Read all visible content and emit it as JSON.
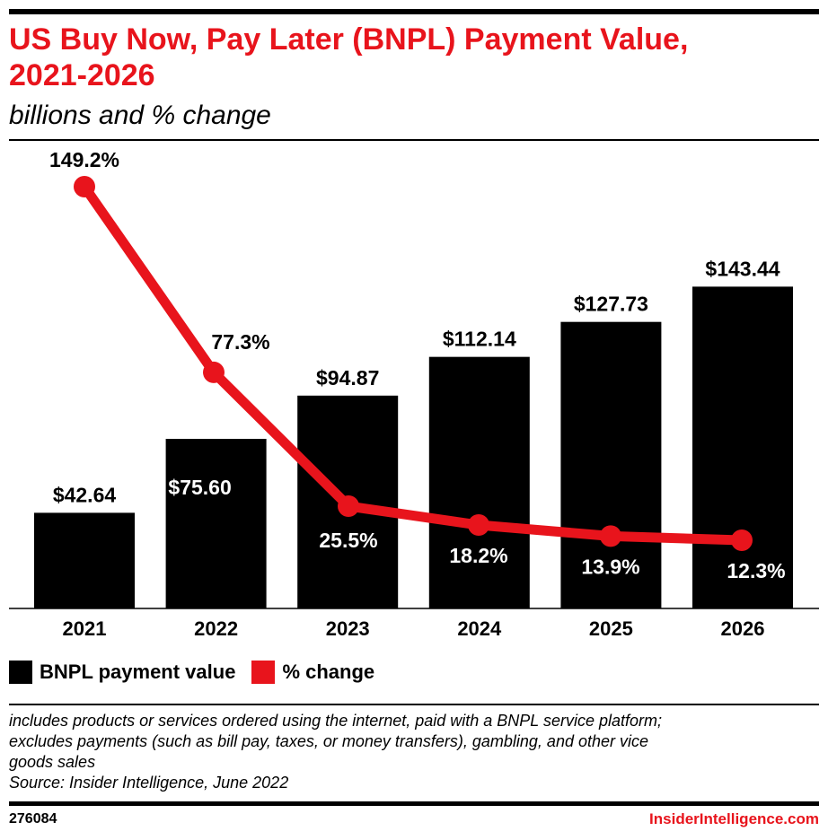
{
  "header": {
    "title_line1": "US Buy Now, Pay Later (BNPL) Payment Value,",
    "title_line2": "2021-2026",
    "subtitle": "billions and % change"
  },
  "chart_data": {
    "type": "bar",
    "categories": [
      "2021",
      "2022",
      "2023",
      "2024",
      "2025",
      "2026"
    ],
    "series": [
      {
        "name": "BNPL payment value",
        "type": "bar",
        "values": [
          42.64,
          75.6,
          94.87,
          112.14,
          127.73,
          143.44
        ],
        "labels": [
          "$42.64",
          "$75.60",
          "$94.87",
          "$112.14",
          "$127.73",
          "$143.44"
        ],
        "color": "#000000"
      },
      {
        "name": "% change",
        "type": "line",
        "values": [
          149.2,
          77.3,
          25.5,
          18.2,
          13.9,
          12.3
        ],
        "labels": [
          "149.2%",
          "77.3%",
          "25.5%",
          "18.2%",
          "13.9%",
          "12.3%"
        ],
        "color": "#e8141c"
      }
    ],
    "legend_position": "bottom-left",
    "grid": false
  },
  "legend": {
    "bar_label": "BNPL payment value",
    "line_label": "% change"
  },
  "note": {
    "line1": "includes products or services ordered using the internet, paid with a BNPL service platform;",
    "line2": "excludes payments (such as bill pay, taxes, or money transfers), gambling, and other vice",
    "line3": "goods sales",
    "source": "Source: Insider Intelligence, June 2022"
  },
  "footer": {
    "chart_id": "276084",
    "brand": "InsiderIntelligence.com"
  },
  "colors": {
    "accent": "#e8141c",
    "bar": "#000000",
    "text": "#000000"
  }
}
